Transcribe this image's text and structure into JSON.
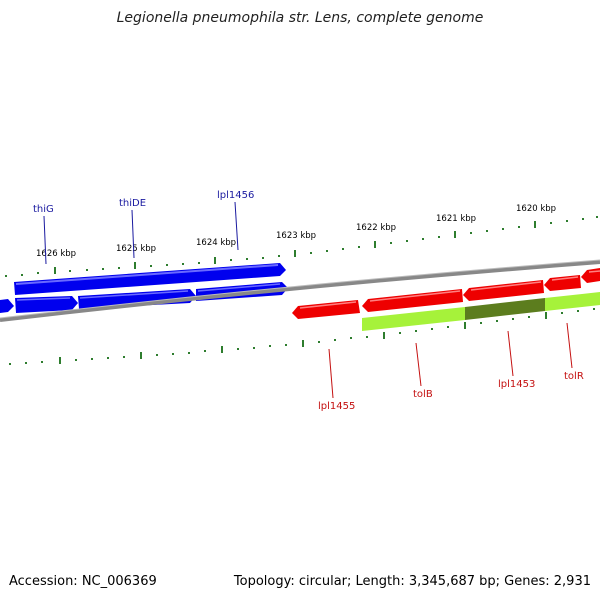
{
  "title": "Legionella pneumophila str. Lens, complete genome",
  "accession_text": "Accession: NC_006369",
  "summary_text": "Topology: circular; Length: 3,345,687 bp; Genes: 2,931",
  "scale_labels": [
    "1626 kbp",
    "1625 kbp",
    "1624 kbp",
    "1623 kbp",
    "1622 kbp",
    "1621 kbp",
    "1620 kbp"
  ],
  "top_genes": [
    "thiG",
    "thiDE",
    "lpl1456"
  ],
  "bottom_genes": [
    "lpl1455",
    "tolB",
    "lpl1453",
    "tolR"
  ],
  "colors": {
    "forward_gene": "#0000ee",
    "reverse_gene": "#ee0000",
    "highlight": "#a6f23a",
    "highlight_dark": "#5c7d1e",
    "ticks": "#2e7d2e",
    "backbone": "#888888",
    "top_label": "#1a1aa0",
    "bottom_label": "#c41010"
  }
}
